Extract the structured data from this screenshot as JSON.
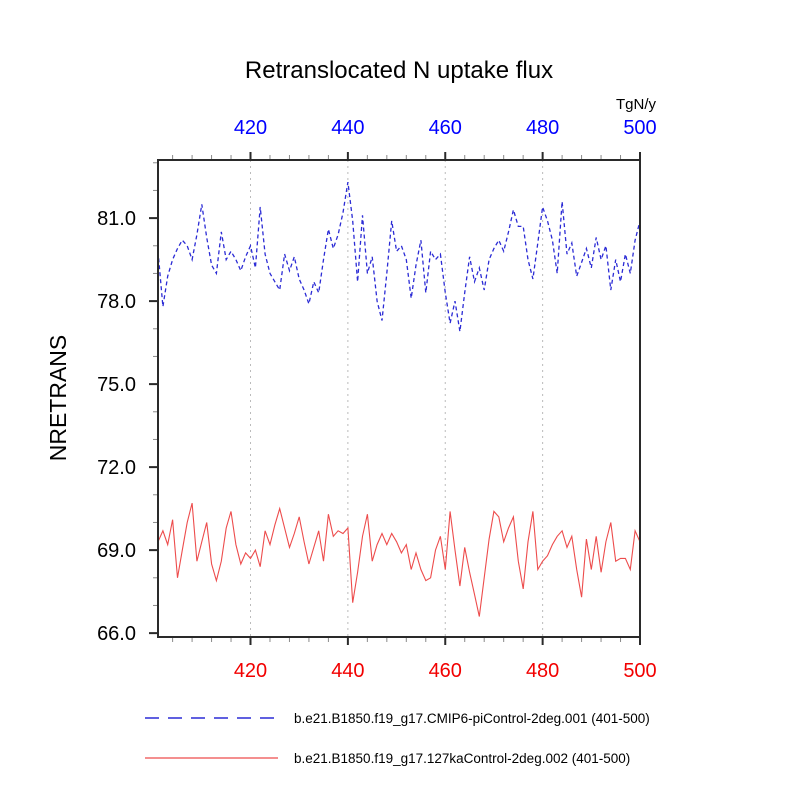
{
  "title": "Retranslocated N uptake flux",
  "colors": {
    "series1_line": "#2b2bd5",
    "series1_axis_labels": "#0000ff",
    "series2_line": "#ed4c4c",
    "series2_axis_labels": "#f20000",
    "frame": "#2a2a2a",
    "minor_tick": "#8a8a8a",
    "gridline": "#bbbbbb",
    "text": "#000000"
  },
  "chart_data": {
    "type": "line",
    "title": "Retranslocated N uptake flux",
    "ylabel": "NRETRANS",
    "top_axis_label": "TgN/y",
    "xlabel": "",
    "xlim": [
      401,
      500
    ],
    "ylim": [
      65.86,
      83.1
    ],
    "x_major_ticks": [
      420,
      440,
      460,
      480,
      500
    ],
    "x_minor_step": 4,
    "y_major_ticks": [
      66.0,
      69.0,
      72.0,
      75.0,
      78.0,
      81.0
    ],
    "y_minor_step": 1,
    "grid_x": [
      420,
      440,
      460,
      480
    ],
    "grid_style": "dotted-vertical",
    "legend_position": "below-plot",
    "x": [
      401,
      402,
      403,
      404,
      405,
      406,
      407,
      408,
      409,
      410,
      411,
      412,
      413,
      414,
      415,
      416,
      417,
      418,
      419,
      420,
      421,
      422,
      423,
      424,
      425,
      426,
      427,
      428,
      429,
      430,
      431,
      432,
      433,
      434,
      435,
      436,
      437,
      438,
      439,
      440,
      441,
      442,
      443,
      444,
      445,
      446,
      447,
      448,
      449,
      450,
      451,
      452,
      453,
      454,
      455,
      456,
      457,
      458,
      459,
      460,
      461,
      462,
      463,
      464,
      465,
      466,
      467,
      468,
      469,
      470,
      471,
      472,
      473,
      474,
      475,
      476,
      477,
      478,
      479,
      480,
      481,
      482,
      483,
      484,
      485,
      486,
      487,
      488,
      489,
      490,
      491,
      492,
      493,
      494,
      495,
      496,
      497,
      498,
      499,
      500
    ],
    "series": [
      {
        "name": "b.e21.B1850.f19_g17.CMIP6-piControl-2deg.001 (401-500)",
        "style": "dashed",
        "color": "#2b2bd5",
        "values": [
          79.8,
          77.8,
          78.9,
          79.5,
          79.9,
          80.2,
          80.0,
          79.5,
          80.4,
          81.5,
          80.3,
          79.3,
          79.0,
          80.5,
          79.5,
          79.8,
          79.5,
          79.1,
          79.6,
          80.0,
          79.2,
          81.4,
          79.7,
          79.0,
          78.7,
          78.4,
          79.7,
          79.1,
          79.6,
          78.8,
          78.4,
          77.9,
          78.7,
          78.3,
          79.5,
          80.6,
          79.9,
          80.4,
          81.2,
          82.3,
          80.9,
          78.7,
          81.1,
          79.0,
          79.6,
          78.0,
          77.3,
          79.0,
          80.9,
          79.8,
          80.0,
          79.5,
          78.1,
          79.3,
          80.2,
          78.3,
          79.8,
          79.5,
          79.7,
          78.3,
          77.2,
          78.0,
          76.9,
          78.3,
          79.6,
          78.7,
          79.2,
          78.4,
          79.5,
          79.9,
          80.2,
          79.8,
          80.5,
          81.3,
          80.7,
          80.7,
          79.5,
          78.8,
          80.1,
          81.4,
          80.9,
          80.2,
          79.0,
          81.6,
          79.7,
          80.1,
          78.9,
          79.4,
          79.9,
          79.2,
          80.3,
          79.5,
          80.0,
          78.4,
          79.5,
          78.7,
          79.7,
          79.0,
          80.2,
          80.9
        ]
      },
      {
        "name": "b.e21.B1850.f19_g17.127kaControl-2deg.002 (401-500)",
        "style": "solid",
        "color": "#ed4c4c",
        "values": [
          69.3,
          69.7,
          69.2,
          70.1,
          68.0,
          69.0,
          70.0,
          70.7,
          68.6,
          69.3,
          70.0,
          68.5,
          67.9,
          68.6,
          69.8,
          70.4,
          69.2,
          68.5,
          68.9,
          68.7,
          69.0,
          68.4,
          69.7,
          69.2,
          69.9,
          70.5,
          69.8,
          69.1,
          69.6,
          70.2,
          69.3,
          68.5,
          69.1,
          69.7,
          68.6,
          70.3,
          69.5,
          69.7,
          69.6,
          69.8,
          67.1,
          68.2,
          69.5,
          70.3,
          68.6,
          69.2,
          69.6,
          69.2,
          69.6,
          69.3,
          68.9,
          69.2,
          68.3,
          68.9,
          68.3,
          67.9,
          68.0,
          69.0,
          69.5,
          68.3,
          70.4,
          69.0,
          67.7,
          69.1,
          68.2,
          67.4,
          66.6,
          68.0,
          69.4,
          70.4,
          70.2,
          69.3,
          69.8,
          70.2,
          68.6,
          67.6,
          69.3,
          70.4,
          68.3,
          68.6,
          68.8,
          69.2,
          69.5,
          69.7,
          69.1,
          69.5,
          68.3,
          67.3,
          69.4,
          68.3,
          69.5,
          68.2,
          69.3,
          70.0,
          68.6,
          68.7,
          68.7,
          68.3,
          69.7,
          69.3
        ]
      }
    ]
  },
  "legend": {
    "items": [
      {
        "label": "b.e21.B1850.f19_g17.CMIP6-piControl-2deg.001 (401-500)",
        "line_style": "dashed",
        "color": "#2b2bd5"
      },
      {
        "label": "b.e21.B1850.f19_g17.127kaControl-2deg.002 (401-500)",
        "line_style": "solid",
        "color": "#ed4c4c"
      }
    ]
  }
}
